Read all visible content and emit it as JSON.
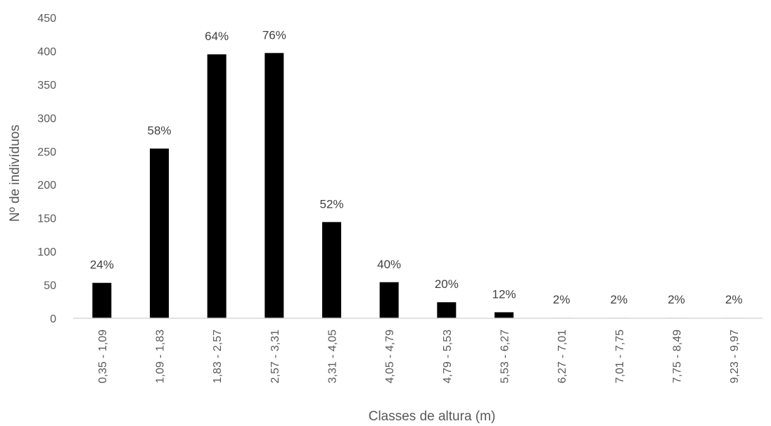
{
  "chart_data": {
    "type": "bar",
    "title": "",
    "xlabel": "Classes de altura (m)",
    "ylabel": "Nº de indivíduos",
    "ylim": [
      0,
      450
    ],
    "yticks": [
      "0",
      "50",
      "100",
      "150",
      "200",
      "250",
      "300",
      "350",
      "400",
      "450"
    ],
    "grid": false,
    "legend": "none",
    "bar_color": "#000000",
    "categories": [
      "0,35 - 1,09",
      "1,09 - 1,83",
      "1,83 - 2,57",
      "2,57 - 3,31",
      "3,31 - 4,05",
      "4,05 - 4,79",
      "4,79 - 5,53",
      "5,53 - 6,27",
      "6,27 - 7,01",
      "7,01 - 7,75",
      "7,75 - 8,49",
      "9,23 - 9,97"
    ],
    "values": [
      53,
      254,
      395,
      397,
      144,
      54,
      24,
      9,
      1,
      1,
      1,
      1
    ],
    "data_labels": [
      "24%",
      "58%",
      "64%",
      "76%",
      "52%",
      "40%",
      "20%",
      "12%",
      "2%",
      "2%",
      "2%",
      "2%"
    ]
  }
}
